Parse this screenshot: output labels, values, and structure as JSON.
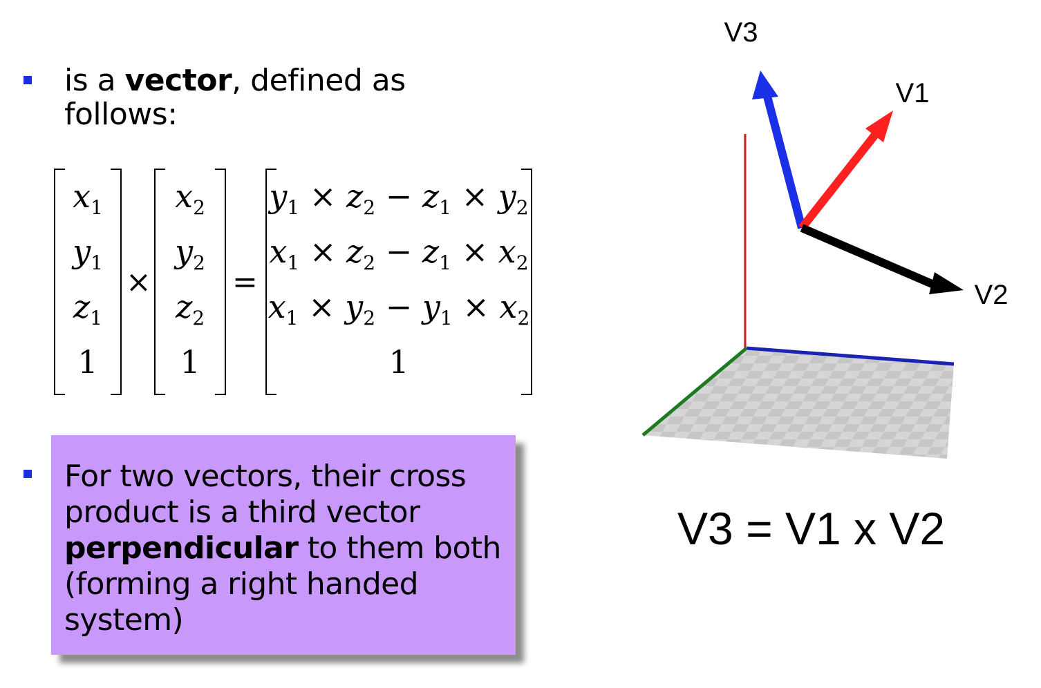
{
  "intro": {
    "prefix": "is a ",
    "bold": "vector",
    "suffix": ", defined as follows:"
  },
  "matrix": {
    "vector1": [
      [
        "x",
        "1"
      ],
      [
        "y",
        "1"
      ],
      [
        "z",
        "1"
      ],
      [
        "1",
        ""
      ]
    ],
    "vector2": [
      [
        "x",
        "2"
      ],
      [
        "y",
        "2"
      ],
      [
        "z",
        "2"
      ],
      [
        "1",
        ""
      ]
    ],
    "times_symbol": "×",
    "equals_symbol": "=",
    "result": [
      [
        [
          "y",
          "1"
        ],
        [
          " × ",
          ""
        ],
        [
          "z",
          "2"
        ],
        [
          " − ",
          ""
        ],
        [
          "z",
          "1"
        ],
        [
          " × ",
          ""
        ],
        [
          "y",
          "2"
        ]
      ],
      [
        [
          "x",
          "1"
        ],
        [
          " × ",
          ""
        ],
        [
          "z",
          "2"
        ],
        [
          " − ",
          ""
        ],
        [
          "z",
          "1"
        ],
        [
          " × ",
          ""
        ],
        [
          "x",
          "2"
        ]
      ],
      [
        [
          "x",
          "1"
        ],
        [
          " × ",
          ""
        ],
        [
          "y",
          "2"
        ],
        [
          " − ",
          ""
        ],
        [
          "y",
          "1"
        ],
        [
          " × ",
          ""
        ],
        [
          "x",
          "2"
        ]
      ],
      [
        [
          "1",
          ""
        ]
      ]
    ]
  },
  "box": {
    "line1": "For two vectors, their cross product is a third vector ",
    "bold": "perpendicular",
    "line2": " to them both (forming a right handed system)"
  },
  "diagram": {
    "labels": {
      "v1": "V1",
      "v2": "V2",
      "v3": "V3"
    },
    "colors": {
      "v1": "#ff2020",
      "v2": "#000000",
      "v3": "#1a2fe6",
      "axis_x": "#1a24b0",
      "axis_y": "#c21a1a",
      "axis_z": "#1e7a1e",
      "bullet": "#1a2fe0",
      "box": "#c899fb"
    }
  },
  "equation": "V3 = V1 x V2"
}
